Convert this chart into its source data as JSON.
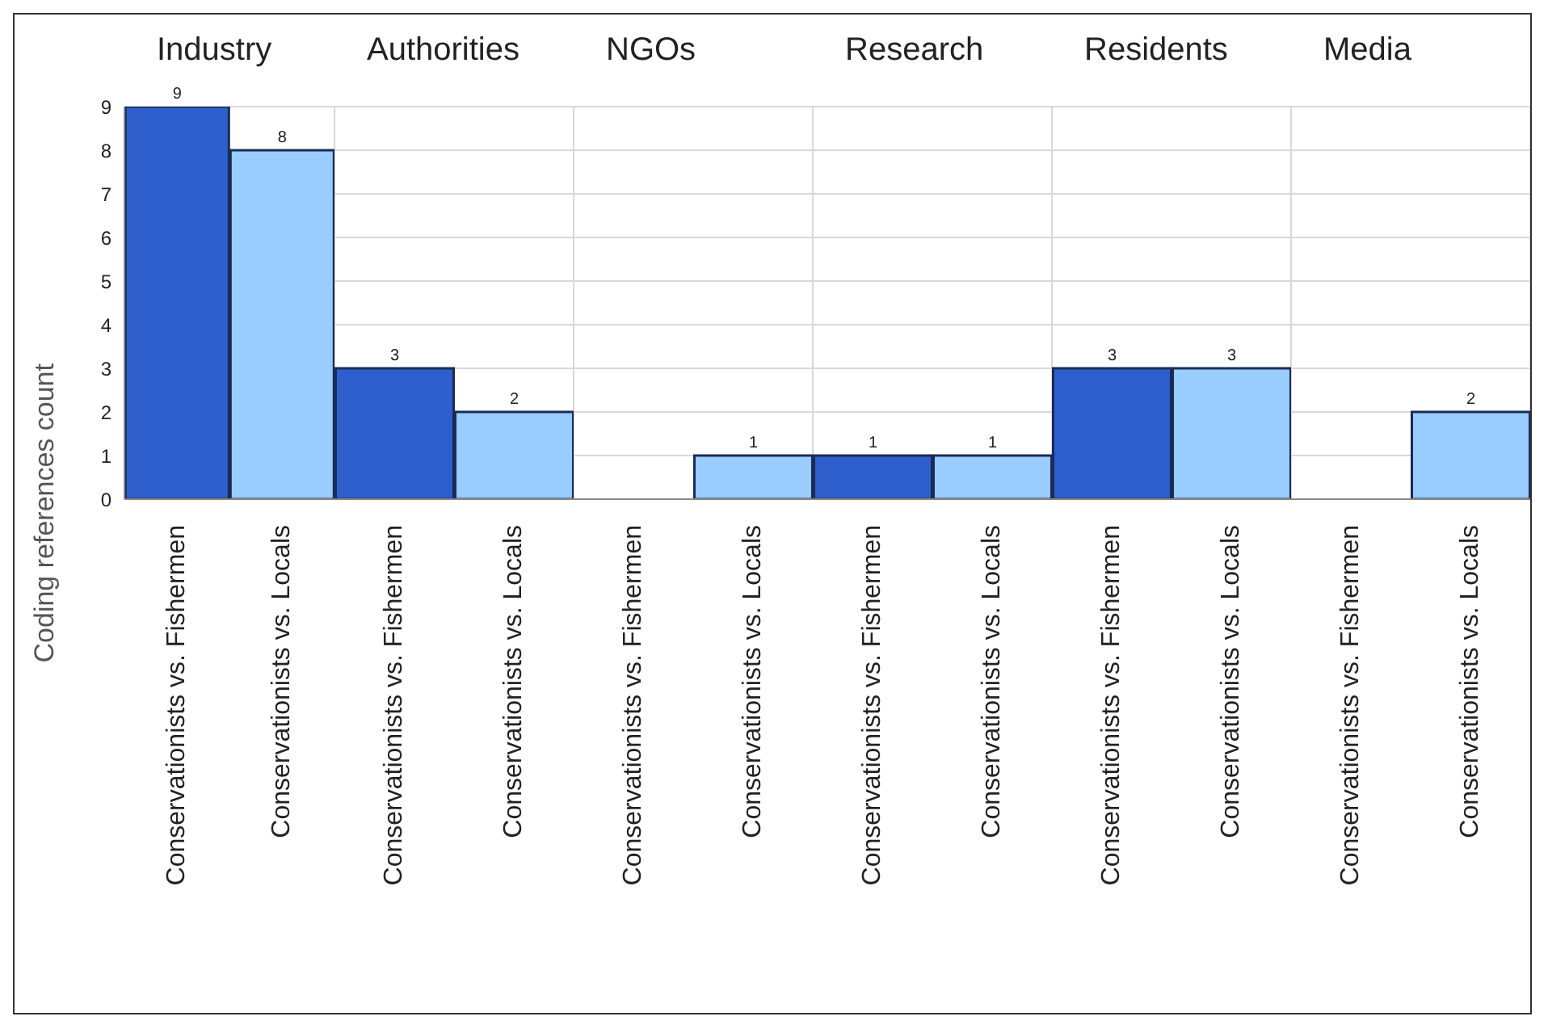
{
  "chart_data": [
    {
      "type": "bar",
      "title": "Industry",
      "ylabel": "Coding references count",
      "categories": [
        "Conservationists vs. Fishermen",
        "Conservationists vs. Locals"
      ],
      "values": [
        9,
        8
      ],
      "colors": [
        "#2f5fcc",
        "#99ccff"
      ],
      "ylim": [
        0,
        9
      ],
      "yticks": [
        0,
        1,
        2,
        3,
        4,
        5,
        6,
        7,
        8,
        9
      ],
      "grid": "y",
      "data_labels": true
    },
    {
      "type": "bar",
      "title": "Authorities",
      "categories": [
        "Conservationists vs. Fishermen",
        "Conservationists vs. Locals"
      ],
      "values": [
        3,
        2
      ],
      "colors": [
        "#2f5fcc",
        "#99ccff"
      ],
      "ylim": [
        0,
        9
      ],
      "yticks": [
        0,
        1,
        2,
        3,
        4,
        5,
        6,
        7,
        8,
        9
      ],
      "grid": "y",
      "data_labels": true,
      "tick_labels": "x"
    },
    {
      "type": "bar",
      "title": "NGOs",
      "categories": [
        "Conservationists vs. Fishermen",
        "Conservationists vs. Locals"
      ],
      "values": [
        null,
        1
      ],
      "colors": [
        "#2f5fcc",
        "#99ccff"
      ],
      "ylim": [
        0,
        9
      ],
      "yticks": [
        0,
        1,
        2,
        3,
        4,
        5,
        6,
        7,
        8,
        9
      ],
      "grid": "y",
      "data_labels": true,
      "tick_labels": "x"
    },
    {
      "type": "bar",
      "title": "Research",
      "categories": [
        "Conservationists vs. Fishermen",
        "Conservationists vs. Locals"
      ],
      "values": [
        1,
        1
      ],
      "colors": [
        "#2f5fcc",
        "#99ccff"
      ],
      "ylim": [
        0,
        9
      ],
      "yticks": [
        0,
        1,
        2,
        3,
        4,
        5,
        6,
        7,
        8,
        9
      ],
      "grid": "y",
      "data_labels": true,
      "tick_labels": "x"
    },
    {
      "type": "bar",
      "title": "Residents",
      "categories": [
        "Conservationists vs. Fishermen",
        "Conservationists vs. Locals"
      ],
      "values": [
        3,
        3
      ],
      "colors": [
        "#2f5fcc",
        "#99ccff"
      ],
      "ylim": [
        0,
        9
      ],
      "yticks": [
        0,
        1,
        2,
        3,
        4,
        5,
        6,
        7,
        8,
        9
      ],
      "grid": "y",
      "data_labels": true,
      "tick_labels": "x"
    },
    {
      "type": "bar",
      "title": "Media",
      "categories": [
        "Conservationists vs. Fishermen",
        "Conservationists vs. Locals"
      ],
      "values": [
        null,
        2
      ],
      "colors": [
        "#2f5fcc",
        "#99ccff"
      ],
      "ylim": [
        0,
        9
      ],
      "yticks": [
        0,
        1,
        2,
        3,
        4,
        5,
        6,
        7,
        8,
        9
      ],
      "grid": "y",
      "data_labels": true,
      "tick_labels": "x"
    }
  ]
}
